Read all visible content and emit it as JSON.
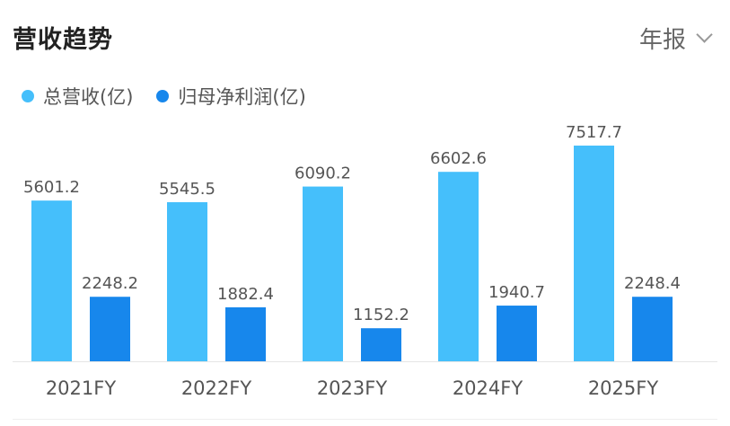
{
  "header": {
    "title": "营收趋势",
    "period_label": "年报"
  },
  "colors": {
    "revenue": "#45BFFB",
    "profit": "#1787EC",
    "label": "#555555",
    "axis": "#e6e6e6"
  },
  "chart_data": {
    "type": "bar",
    "categories": [
      "2021FY",
      "2022FY",
      "2023FY",
      "2024FY",
      "2025FY"
    ],
    "series": [
      {
        "name": "总营收(亿)",
        "values": [
          5601.2,
          5545.5,
          6090.2,
          6602.6,
          7517.7
        ]
      },
      {
        "name": "归母净利润(亿)",
        "values": [
          2248.2,
          1882.4,
          1152.2,
          1940.7,
          2248.4
        ]
      }
    ],
    "title": "营收趋势",
    "xlabel": "",
    "ylabel": "",
    "ylim": [
      0,
      7517.7
    ],
    "grid": false,
    "legend": "top-left"
  }
}
